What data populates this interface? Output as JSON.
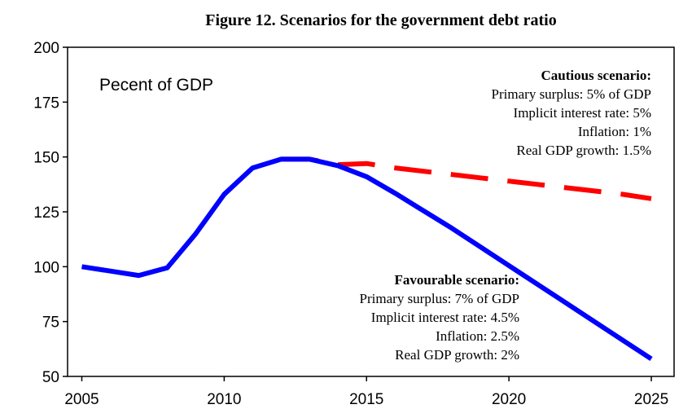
{
  "chart_data": {
    "type": "line",
    "title": "Figure 12. Scenarios for the government debt ratio",
    "unit_label": "Pecent of GDP",
    "x_ticks": [
      2005,
      2010,
      2015,
      2020,
      2025
    ],
    "y_ticks": [
      50,
      75,
      100,
      125,
      150,
      175,
      200
    ],
    "xlim": [
      2004.5,
      2025.8
    ],
    "ylim": [
      50,
      200
    ],
    "grid": false,
    "colors": {
      "favourable": "#0000ff",
      "cautious": "#ff0000"
    },
    "series": [
      {
        "key": "favourable",
        "style": "solid",
        "x": [
          2005,
          2006,
          2007,
          2008,
          2009,
          2010,
          2011,
          2012,
          2013,
          2014,
          2015,
          2016,
          2017,
          2018,
          2019,
          2020,
          2021,
          2022,
          2023,
          2024,
          2025
        ],
        "values": [
          100,
          98,
          96,
          99.5,
          115,
          133,
          145,
          149,
          149,
          146,
          141,
          133.5,
          125.5,
          117.5,
          109,
          100.5,
          92,
          83.5,
          75,
          66.5,
          58
        ]
      },
      {
        "key": "cautious",
        "style": "dashed",
        "x": [
          2012,
          2013,
          2014,
          2015,
          2016,
          2017,
          2018,
          2019,
          2020,
          2021,
          2022,
          2023,
          2024,
          2025
        ],
        "values": [
          149,
          149,
          146.5,
          147,
          145,
          143.5,
          142,
          140.5,
          139,
          137.5,
          136,
          134.5,
          133,
          131
        ]
      }
    ],
    "annotations": {
      "cautious": {
        "heading": "Cautious scenario:",
        "lines": [
          "Primary surplus: 5% of GDP",
          "Implicit interest rate: 5%",
          "Inflation: 1%",
          "Real GDP growth: 1.5%"
        ]
      },
      "favourable": {
        "heading": "Favourable scenario:",
        "lines": [
          "Primary surplus: 7% of GDP",
          "Implicit interest rate: 4.5%",
          "Inflation: 2.5%",
          "Real GDP growth: 2%"
        ]
      }
    }
  }
}
